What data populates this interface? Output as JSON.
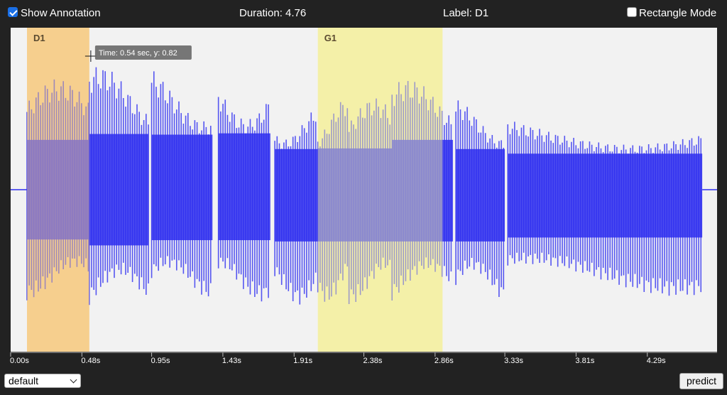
{
  "topbar": {
    "show_annotation": {
      "label": "Show Annotation",
      "checked": true
    },
    "duration_text": "Duration: 4.76",
    "label_text": "Label: D1",
    "rectangle_mode": {
      "label": "Rectangle Mode",
      "checked": false
    }
  },
  "chart_data": {
    "type": "area",
    "title": "",
    "xlabel": "",
    "ylabel": "",
    "xlim": [
      0,
      4.76
    ],
    "ylim": [
      -1,
      1
    ],
    "grid": false,
    "waveform_color": "#2e2ef0",
    "x_tick_labels": [
      "0.00s",
      "0.48s",
      "0.95s",
      "1.43s",
      "1.91s",
      "2.38s",
      "2.86s",
      "3.33s",
      "3.81s",
      "4.29s"
    ],
    "x_ticks": [
      0.0,
      0.48,
      0.95,
      1.43,
      1.91,
      2.38,
      2.86,
      3.33,
      3.81,
      4.29
    ],
    "annotations": [
      {
        "label": "D1",
        "start": 0.11,
        "end": 0.53,
        "color": "#f6cf8e"
      },
      {
        "label": "G1",
        "start": 2.07,
        "end": 2.91,
        "color": "#f5f0a8"
      }
    ],
    "segments": [
      {
        "start": 0.11,
        "end": 0.53,
        "amp_top": 0.76,
        "amp_bottom": 0.76
      },
      {
        "start": 0.53,
        "end": 0.93,
        "amp_top": 0.85,
        "amp_bottom": 0.85
      },
      {
        "start": 0.95,
        "end": 1.36,
        "amp_top": 0.84,
        "amp_bottom": 0.77
      },
      {
        "start": 1.4,
        "end": 1.75,
        "amp_top": 0.86,
        "amp_bottom": 0.77
      },
      {
        "start": 1.78,
        "end": 2.07,
        "amp_top": 0.62,
        "amp_bottom": 0.79
      },
      {
        "start": 2.07,
        "end": 2.28,
        "amp_top": 0.63,
        "amp_bottom": 0.79
      },
      {
        "start": 2.28,
        "end": 2.57,
        "amp_top": 0.63,
        "amp_bottom": 0.79
      },
      {
        "start": 2.57,
        "end": 2.98,
        "amp_top": 0.76,
        "amp_bottom": 0.79
      },
      {
        "start": 3.0,
        "end": 3.33,
        "amp_top": 0.62,
        "amp_bottom": 0.79
      },
      {
        "start": 3.35,
        "end": 4.66,
        "amp_top": 0.55,
        "amp_bottom": 0.73
      }
    ],
    "tooltip": {
      "text": "Time: 0.54 sec, y: 0.82",
      "x": 0.54,
      "y": 0.82
    }
  },
  "bottombar": {
    "select_value": "default",
    "predict_label": "predict"
  }
}
